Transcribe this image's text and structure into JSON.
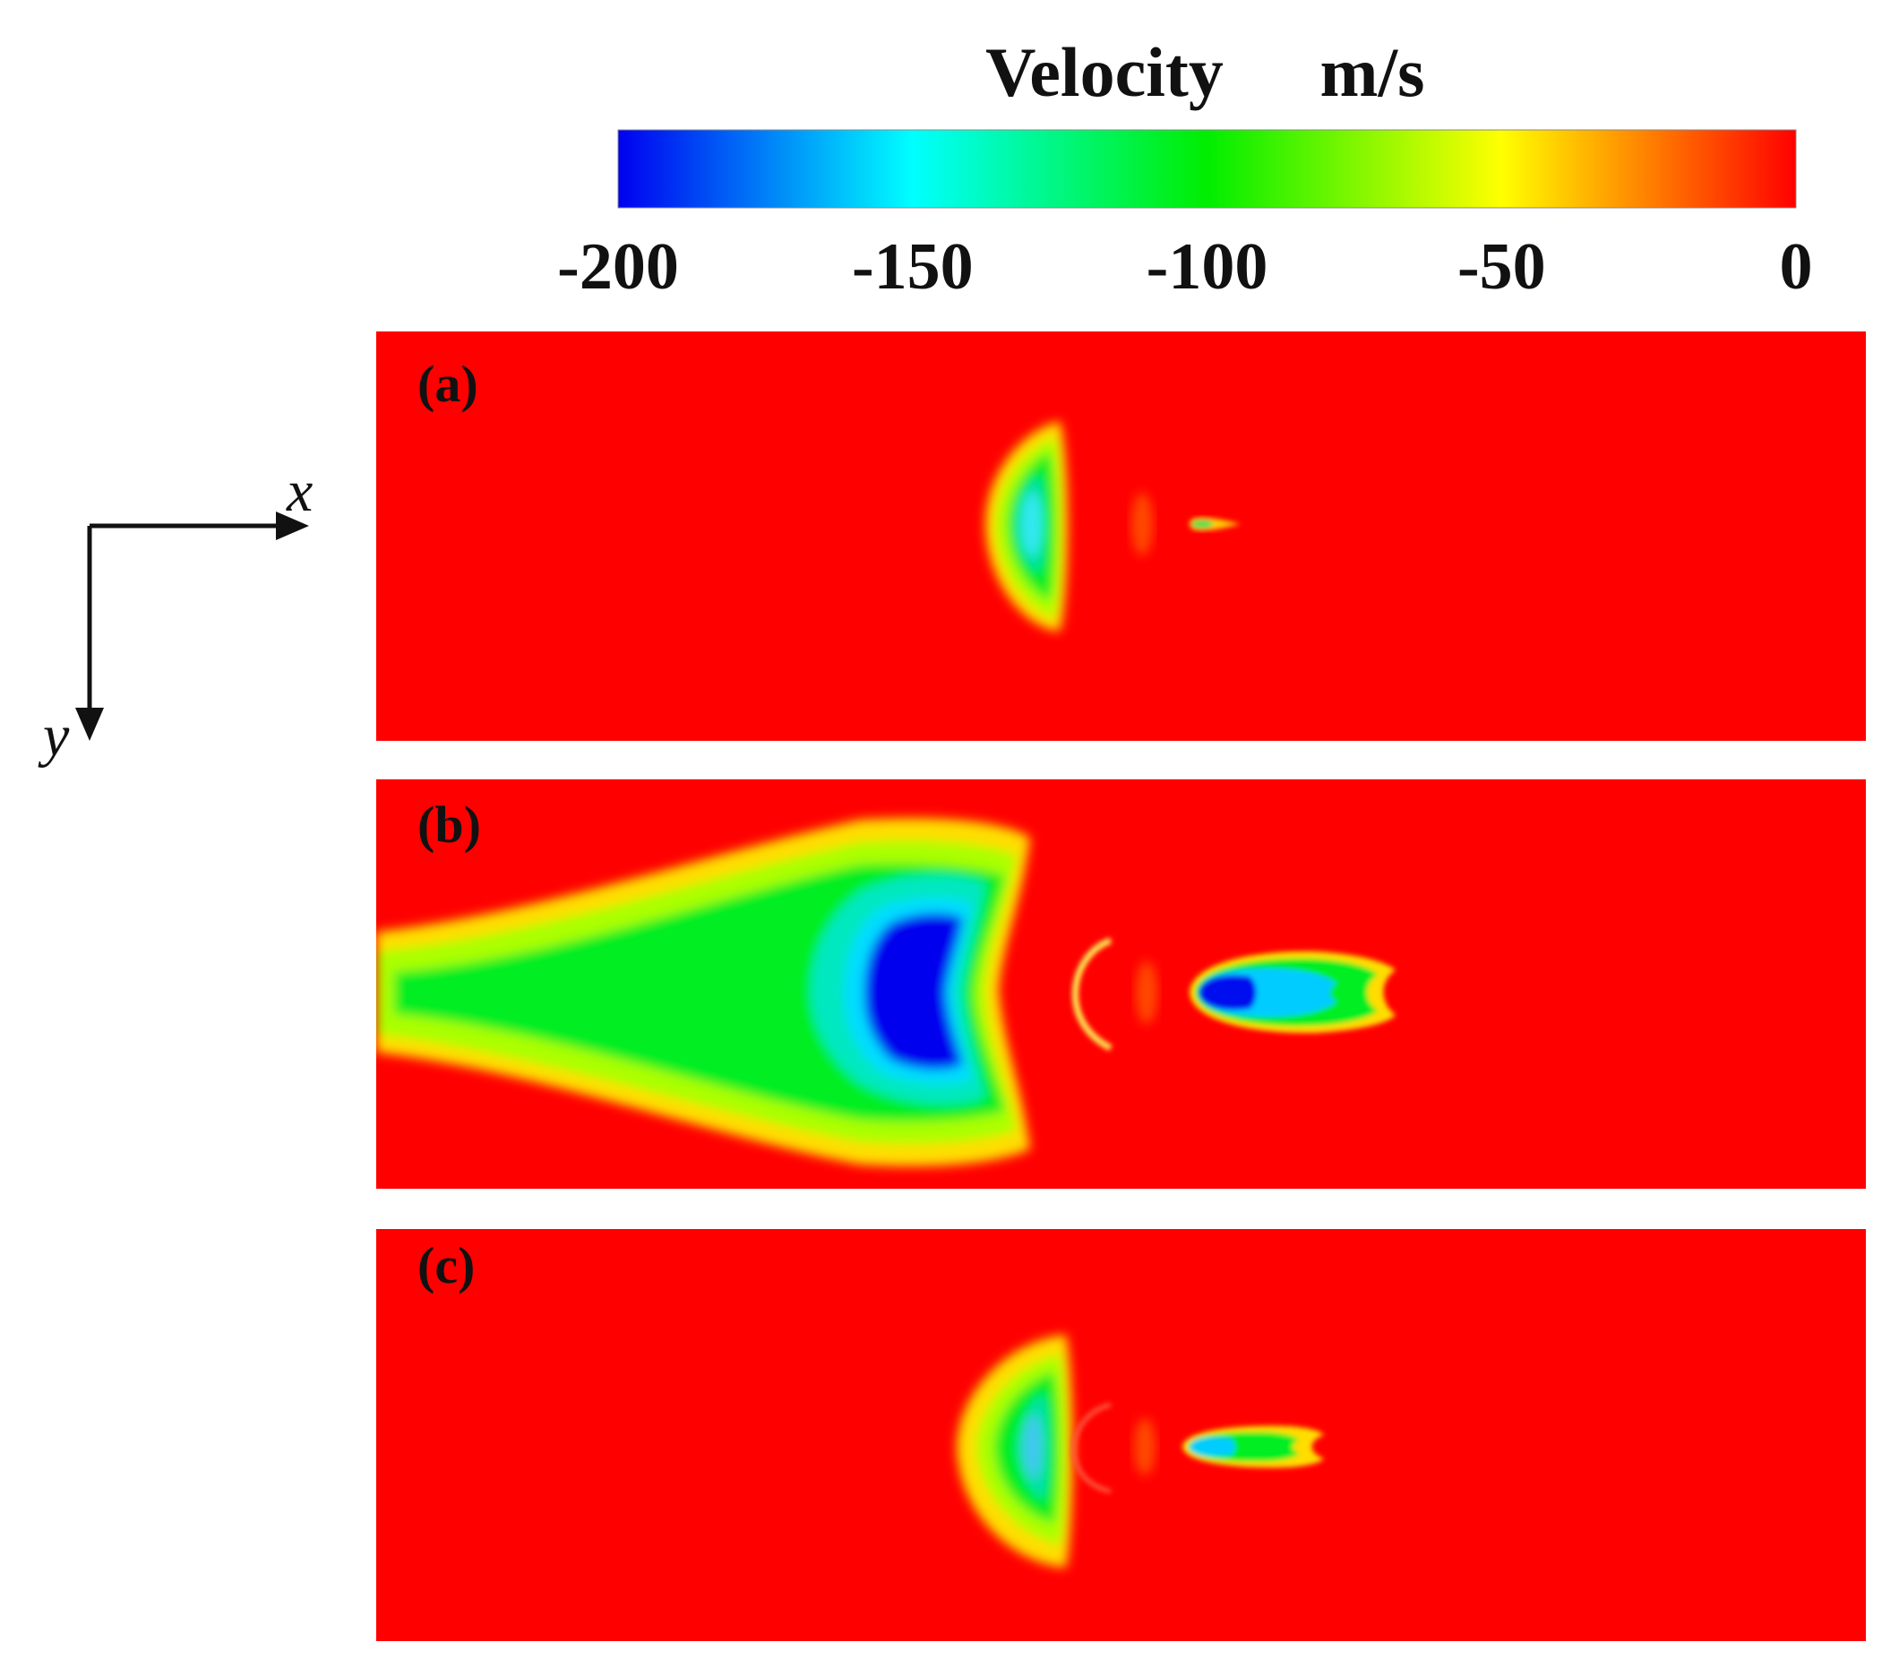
{
  "chart_data": {
    "type": "heatmap",
    "title": "Velocity",
    "unit": "m/s",
    "colorbar": {
      "min": -200,
      "max": 0,
      "ticks": [
        -200,
        -150,
        -100,
        -50,
        0
      ],
      "tick_labels": [
        "-200",
        "-150",
        "-100",
        "-50",
        "0"
      ],
      "colormap": [
        "#0000ff",
        "#00ffff",
        "#00ff00",
        "#ffff00",
        "#ff0000"
      ]
    },
    "background_value": 0,
    "axes": {
      "x_label": "x",
      "y_label": "y"
    },
    "panels": [
      {
        "label": "(a)",
        "min_velocity": -150
      },
      {
        "label": "(b)",
        "min_velocity": -200
      },
      {
        "label": "(c)",
        "min_velocity": -150
      }
    ]
  }
}
